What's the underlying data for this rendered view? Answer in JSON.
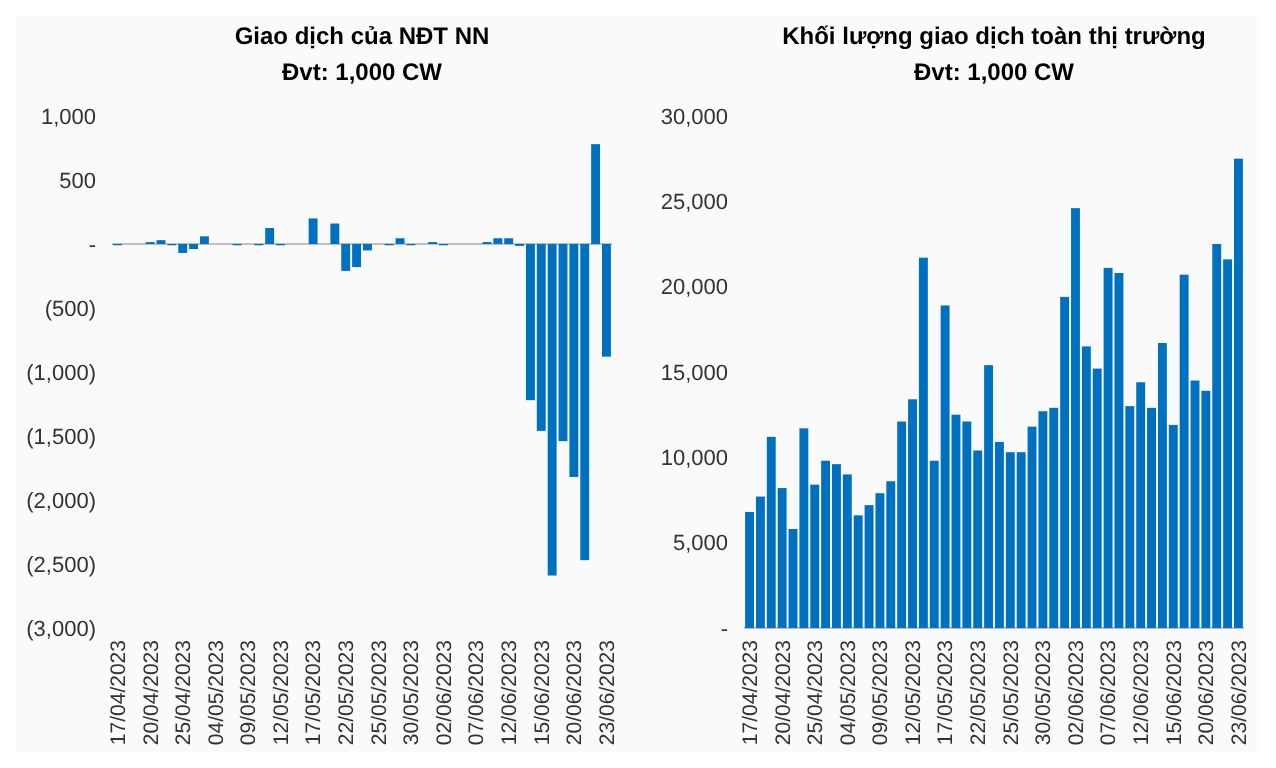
{
  "chart_data": [
    {
      "type": "bar",
      "title": "Giao dịch của NĐT NN",
      "subtitle": "Đvt: 1,000 CW",
      "categories": [
        "17/04/2023",
        null,
        null,
        "20/04/2023",
        null,
        null,
        "25/04/2023",
        null,
        null,
        "04/05/2023",
        null,
        null,
        "09/05/2023",
        null,
        null,
        "12/05/2023",
        null,
        null,
        "17/05/2023",
        null,
        null,
        "22/05/2023",
        null,
        null,
        "25/05/2023",
        null,
        null,
        "30/05/2023",
        null,
        null,
        "02/06/2023",
        null,
        null,
        "07/06/2023",
        null,
        null,
        "12/06/2023",
        null,
        null,
        "15/06/2023",
        null,
        null,
        "20/06/2023",
        null,
        null,
        "23/06/2023"
      ],
      "values": [
        -10,
        0,
        0,
        15,
        30,
        -10,
        -70,
        -40,
        60,
        0,
        0,
        -10,
        0,
        -10,
        125,
        -10,
        0,
        0,
        200,
        0,
        160,
        -210,
        -180,
        -50,
        0,
        -10,
        45,
        -10,
        0,
        15,
        -10,
        0,
        0,
        0,
        15,
        45,
        45,
        -15,
        -1220,
        -1460,
        -2590,
        -1540,
        -1820,
        -2470,
        780,
        -880
      ],
      "color": "#0070c0",
      "ylim": [
        -3000,
        1000
      ],
      "yticks": [
        {
          "value": 1000,
          "label": "1,000"
        },
        500,
        {
          "value": 0,
          "label": "-"
        },
        {
          "value": -500,
          "label": "(500)"
        },
        {
          "value": -1000,
          "label": "(1,000)"
        },
        {
          "value": -1500,
          "label": "(1,500)"
        },
        {
          "value": -2000,
          "label": "(2,000)"
        },
        {
          "value": -2500,
          "label": "(2,500)"
        },
        {
          "value": -3000,
          "label": "(3,000)"
        }
      ]
    },
    {
      "type": "bar",
      "title": "Khối lượng giao dịch toàn thị trường",
      "subtitle": "Đvt: 1,000 CW",
      "categories": [
        "17/04/2023",
        null,
        null,
        "20/04/2023",
        null,
        null,
        "25/04/2023",
        null,
        null,
        "04/05/2023",
        null,
        null,
        "09/05/2023",
        null,
        null,
        "12/05/2023",
        null,
        null,
        "17/05/2023",
        null,
        null,
        "22/05/2023",
        null,
        null,
        "25/05/2023",
        null,
        null,
        "30/05/2023",
        null,
        null,
        "02/06/2023",
        null,
        null,
        "07/06/2023",
        null,
        null,
        "12/06/2023",
        null,
        null,
        "15/06/2023",
        null,
        null,
        "20/06/2023",
        null,
        null,
        "23/06/2023"
      ],
      "values": [
        6800,
        7700,
        11200,
        8200,
        5800,
        11700,
        8400,
        9800,
        9600,
        9000,
        6600,
        7200,
        7900,
        8600,
        12100,
        13400,
        21700,
        9800,
        18900,
        12500,
        12100,
        10400,
        15400,
        10900,
        10300,
        10300,
        11800,
        12700,
        12900,
        19400,
        24600,
        16500,
        15200,
        21100,
        20800,
        13000,
        14400,
        12900,
        16700,
        11900,
        20700,
        14500,
        13900,
        22500,
        21600,
        27500
      ],
      "color": "#0070c0",
      "ylim": [
        0,
        30000
      ],
      "yticks": [
        {
          "value": 0,
          "label": "-"
        },
        {
          "value": 5000,
          "label": "5,000"
        },
        {
          "value": 10000,
          "label": "10,000"
        },
        {
          "value": 15000,
          "label": "15,000"
        },
        {
          "value": 20000,
          "label": "20,000"
        },
        {
          "value": 25000,
          "label": "25,000"
        },
        {
          "value": 30000,
          "label": "30,000"
        }
      ]
    }
  ]
}
